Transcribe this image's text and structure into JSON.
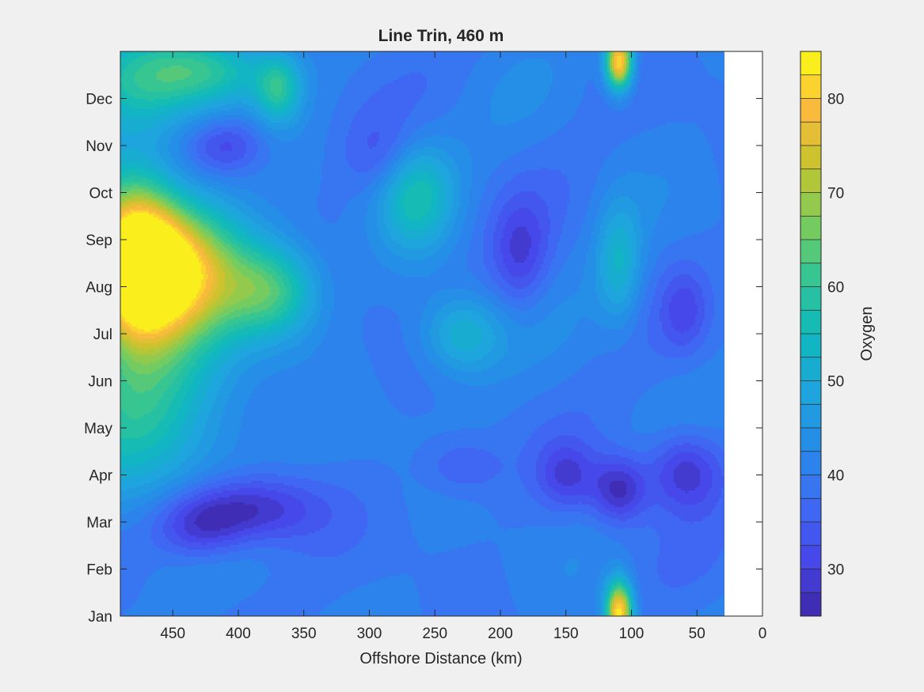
{
  "chart_data": {
    "type": "heatmap",
    "subtype": "filled-contour",
    "title": "Line Trin, 460 m",
    "xlabel": "Offshore Distance (km)",
    "ylabel": "",
    "x_reversed": true,
    "xlim": [
      490,
      0
    ],
    "xticks": [
      450,
      400,
      350,
      300,
      250,
      200,
      150,
      100,
      50,
      0
    ],
    "data_x_range": [
      490,
      30
    ],
    "ylim": [
      1,
      13
    ],
    "yticks": [
      1,
      2,
      3,
      4,
      5,
      6,
      7,
      8,
      9,
      10,
      11,
      12
    ],
    "yticklabels": [
      "Jan",
      "Feb",
      "Mar",
      "Apr",
      "May",
      "Jun",
      "Jul",
      "Aug",
      "Sep",
      "Oct",
      "Nov",
      "Dec"
    ],
    "colorbar": {
      "label": "Oxygen",
      "range": [
        25,
        85
      ],
      "level_step": 2.5,
      "ticks": [
        30,
        40,
        50,
        60,
        70,
        80
      ],
      "colormap": "parula"
    },
    "blobs": [
      {
        "x": 455,
        "y": 8.4,
        "v": 85,
        "sx": 38,
        "sy": 1.0
      },
      {
        "x": 480,
        "y": 8.6,
        "v": 74,
        "sx": 22,
        "sy": 1.2
      },
      {
        "x": 375,
        "y": 7.9,
        "v": 60,
        "sx": 25,
        "sy": 0.7
      },
      {
        "x": 470,
        "y": 5.5,
        "v": 58,
        "sx": 45,
        "sy": 1.5
      },
      {
        "x": 480,
        "y": 12.4,
        "v": 56,
        "sx": 40,
        "sy": 0.8
      },
      {
        "x": 420,
        "y": 12.6,
        "v": 54,
        "sx": 35,
        "sy": 0.5
      },
      {
        "x": 370,
        "y": 12.2,
        "v": 56,
        "sx": 12,
        "sy": 0.5
      },
      {
        "x": 265,
        "y": 10.0,
        "v": 56,
        "sx": 20,
        "sy": 0.8
      },
      {
        "x": 230,
        "y": 7.0,
        "v": 53,
        "sx": 22,
        "sy": 0.6
      },
      {
        "x": 110,
        "y": 12.8,
        "v": 84,
        "sx": 7,
        "sy": 0.4
      },
      {
        "x": 110,
        "y": 1.1,
        "v": 84,
        "sx": 7,
        "sy": 0.45
      },
      {
        "x": 110,
        "y": 8.5,
        "v": 52,
        "sx": 12,
        "sy": 0.9
      },
      {
        "x": 390,
        "y": 3.3,
        "v": 26,
        "sx": 35,
        "sy": 0.5
      },
      {
        "x": 430,
        "y": 2.9,
        "v": 28,
        "sx": 25,
        "sy": 0.5
      },
      {
        "x": 110,
        "y": 3.7,
        "v": 26,
        "sx": 15,
        "sy": 0.5
      },
      {
        "x": 60,
        "y": 4.1,
        "v": 27,
        "sx": 20,
        "sy": 0.6
      },
      {
        "x": 150,
        "y": 4.0,
        "v": 31,
        "sx": 15,
        "sy": 0.5
      },
      {
        "x": 185,
        "y": 8.7,
        "v": 31,
        "sx": 15,
        "sy": 0.8
      },
      {
        "x": 410,
        "y": 11.0,
        "v": 31,
        "sx": 20,
        "sy": 0.4
      },
      {
        "x": 60,
        "y": 7.5,
        "v": 33,
        "sx": 12,
        "sy": 0.6
      },
      {
        "x": 290,
        "y": 10.8,
        "v": 34,
        "sx": 20,
        "sy": 0.6
      },
      {
        "x": 230,
        "y": 4.2,
        "v": 34,
        "sx": 20,
        "sy": 0.4
      }
    ]
  },
  "colors": {
    "background": "#f0f0f0",
    "axes_background": "#ffffff",
    "base_field": "#3a6ef0",
    "axis": "#262626"
  }
}
